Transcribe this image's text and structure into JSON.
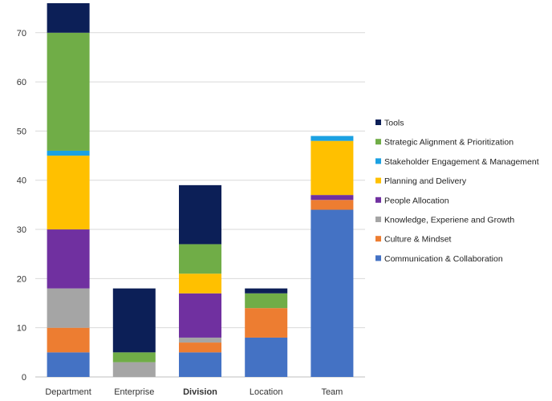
{
  "chart_data": {
    "type": "bar",
    "stacked": true,
    "title": "",
    "xlabel": "",
    "ylabel": "",
    "ylim": [
      0,
      76
    ],
    "yticks": [
      0,
      10,
      20,
      30,
      40,
      50,
      60,
      70
    ],
    "grid": true,
    "legend_position": "right",
    "categories": [
      "Department",
      "Enterprise",
      "Division",
      "Location",
      "Team"
    ],
    "bold_categories": [
      "Division"
    ],
    "series": [
      {
        "name": "Communication & Collaboration",
        "color": "#4472C4",
        "values": [
          5,
          0,
          5,
          8,
          34
        ]
      },
      {
        "name": "Culture & Mindset",
        "color": "#ED7D31",
        "values": [
          5,
          0,
          2,
          6,
          2
        ]
      },
      {
        "name": "Knowledge, Experiene and Growth",
        "color": "#A5A5A5",
        "values": [
          8,
          3,
          1,
          0,
          0
        ]
      },
      {
        "name": "People Allocation",
        "color": "#7030A0",
        "values": [
          12,
          0,
          9,
          0,
          1
        ]
      },
      {
        "name": "Planning and Delivery",
        "color": "#FFC000",
        "values": [
          15,
          0,
          4,
          0,
          11
        ]
      },
      {
        "name": "Stakeholder Engagement & Management",
        "color": "#1BA1E2",
        "values": [
          1,
          0,
          0,
          0,
          1
        ]
      },
      {
        "name": "Strategic Alignment & Prioritization",
        "color": "#70AD47",
        "values": [
          24,
          2,
          6,
          3,
          0
        ]
      },
      {
        "name": "Tools",
        "color": "#0C1F57",
        "values": [
          6,
          13,
          12,
          1,
          0
        ]
      }
    ]
  }
}
